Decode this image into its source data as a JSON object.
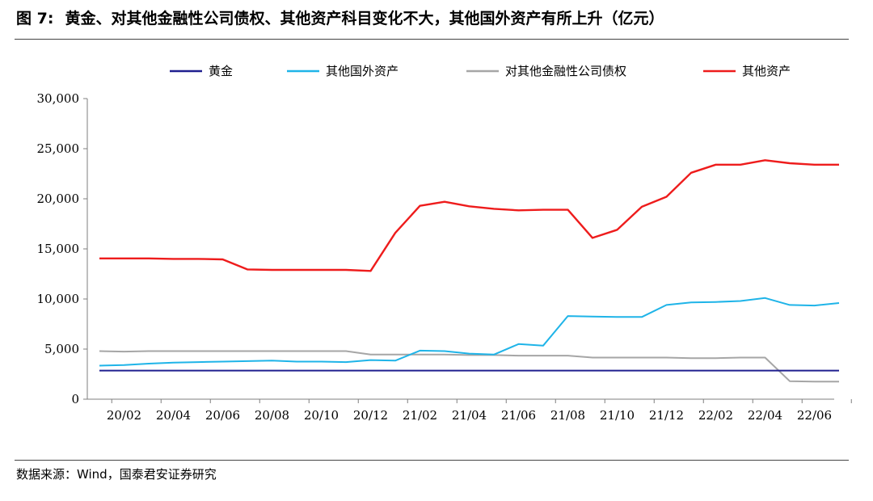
{
  "figure": {
    "number": "图 7:",
    "title": "黄金、对其他金融性公司债权、其他资产科目变化不大，其他国外资产有所上升（亿元）",
    "source": "数据来源：Wind，国泰君安证券研究"
  },
  "chart_data": {
    "type": "line",
    "title": "黄金、对其他金融性公司债权、其他资产科目变化不大，其他国外资产有所上升（亿元）",
    "xlabel": "",
    "ylabel": "",
    "ylim": [
      0,
      30000
    ],
    "yticks": [
      0,
      5000,
      10000,
      15000,
      20000,
      25000,
      30000
    ],
    "ytick_labels": [
      "0",
      "5,000",
      "10,000",
      "15,000",
      "20,000",
      "25,000",
      "30,000"
    ],
    "xtick_labels": [
      "20/02",
      "20/04",
      "20/06",
      "20/08",
      "20/10",
      "20/12",
      "21/02",
      "21/04",
      "21/06",
      "21/08",
      "21/10",
      "21/12",
      "22/02",
      "22/04",
      "22/06"
    ],
    "x": [
      "20/01",
      "20/02",
      "20/03",
      "20/04",
      "20/05",
      "20/06",
      "20/07",
      "20/08",
      "20/09",
      "20/10",
      "20/11",
      "20/12",
      "21/01",
      "21/02",
      "21/03",
      "21/04",
      "21/05",
      "21/06",
      "21/07",
      "21/08",
      "21/09",
      "21/10",
      "21/11",
      "21/12",
      "22/01",
      "22/02",
      "22/03",
      "22/04",
      "22/05",
      "22/06",
      "22/07"
    ],
    "grid": false,
    "legend_position": "top",
    "series": [
      {
        "name": "黄金",
        "color": "#1f1f8f",
        "values": [
          2856,
          2856,
          2856,
          2856,
          2856,
          2856,
          2856,
          2856,
          2856,
          2856,
          2856,
          2856,
          2856,
          2856,
          2856,
          2856,
          2856,
          2856,
          2856,
          2856,
          2856,
          2856,
          2856,
          2856,
          2856,
          2856,
          2856,
          2856,
          2856,
          2856,
          2856
        ]
      },
      {
        "name": "其他国外资产",
        "color": "#1fb4e8",
        "values": [
          3350,
          3400,
          3550,
          3650,
          3700,
          3750,
          3800,
          3850,
          3750,
          3750,
          3700,
          3900,
          3850,
          4850,
          4800,
          4550,
          4450,
          5500,
          5350,
          8300,
          8250,
          8200,
          8200,
          9400,
          9650,
          9700,
          9800,
          10100,
          9400,
          9350,
          9600
        ]
      },
      {
        "name": "对其他金融性公司债权",
        "color": "#a6a6a6",
        "values": [
          4800,
          4750,
          4800,
          4800,
          4800,
          4800,
          4800,
          4800,
          4800,
          4800,
          4800,
          4450,
          4450,
          4450,
          4450,
          4400,
          4400,
          4350,
          4350,
          4350,
          4150,
          4150,
          4150,
          4150,
          4100,
          4100,
          4150,
          4150,
          1800,
          1750,
          1750
        ]
      },
      {
        "name": "其他资产",
        "color": "#ee1c1c",
        "values": [
          14050,
          14050,
          14050,
          14000,
          14000,
          13950,
          12950,
          12900,
          12900,
          12900,
          12900,
          12800,
          16600,
          19300,
          19700,
          19250,
          19000,
          18850,
          18900,
          18900,
          16100,
          16900,
          19200,
          20200,
          22600,
          23400,
          23400,
          23850,
          23550,
          23400,
          23400
        ]
      }
    ]
  }
}
